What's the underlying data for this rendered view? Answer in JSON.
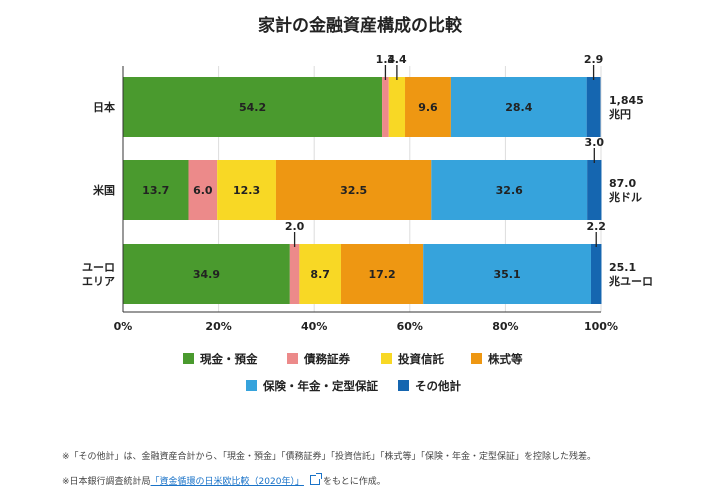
{
  "colors": {
    "cash": "#4a9a2e",
    "debt": "#ec8a8a",
    "invest": "#f8d825",
    "stocks": "#ee9712",
    "insurance": "#36a3dc",
    "other": "#1566b0",
    "grid": "#dddddd",
    "axis": "#333333"
  },
  "chart_data": {
    "type": "bar",
    "orientation": "horizontal",
    "stacked": true,
    "title": "家計の金融資産構成の比較",
    "categories": [
      "日本",
      "米国",
      "ユーロ\nエリア"
    ],
    "category_lines": [
      [
        "日本"
      ],
      [
        "米国"
      ],
      [
        "ユーロ",
        "エリア"
      ]
    ],
    "totals": [
      [
        "1,845",
        "兆円"
      ],
      [
        "87.0",
        "兆ドル"
      ],
      [
        "25.1",
        "兆ユーロ"
      ]
    ],
    "series": [
      {
        "name": "現金・預金",
        "color_key": "cash",
        "values": [
          54.2,
          13.7,
          34.9
        ]
      },
      {
        "name": "債務証券",
        "color_key": "debt",
        "values": [
          1.4,
          6.0,
          2.0
        ]
      },
      {
        "name": "投資信託",
        "color_key": "invest",
        "values": [
          3.4,
          12.3,
          8.7
        ]
      },
      {
        "name": "株式等",
        "color_key": "stocks",
        "values": [
          9.6,
          32.5,
          17.2
        ]
      },
      {
        "name": "保険・年金・定型保証",
        "color_key": "insurance",
        "values": [
          28.4,
          32.6,
          35.1
        ]
      },
      {
        "name": "その他計",
        "color_key": "other",
        "values": [
          2.9,
          3.0,
          2.2
        ]
      }
    ],
    "x_ticks": [
      "0%",
      "20%",
      "40%",
      "60%",
      "80%",
      "100%"
    ],
    "xlim": [
      0,
      100
    ],
    "grid": true,
    "legend_position": "bottom"
  },
  "notes": {
    "line1": "※「その他計」は、金融資産合計から、「現金・預金」「債務証券」「投資信託」「株式等」「保険・年金・定型保証」を控除した残差。",
    "line2_prefix": "※日本銀行調査統計局",
    "line2_link": "「資金循環の日米欧比較（2020年）」",
    "line2_suffix": "をもとに作成。"
  }
}
